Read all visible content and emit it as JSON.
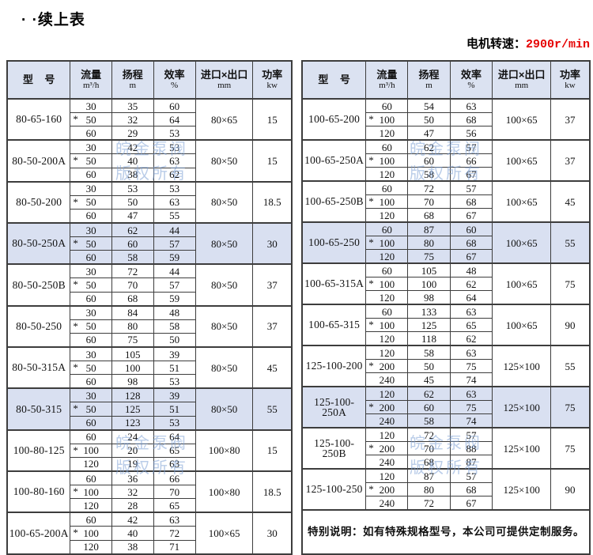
{
  "page": {
    "title": "· ·续上表",
    "motor_speed_label": "电机转速：",
    "motor_speed_value": "2900r/min"
  },
  "colors": {
    "accent_red": "#e60000",
    "header_bg": "#dbe2f1",
    "highlight_bg": "#d9e0f1",
    "watermark_blue": "#80a2d6",
    "border": "#3d3d3d"
  },
  "watermark": {
    "line1": "皖金泵阀",
    "line2": "版权所有"
  },
  "headers": {
    "model": "型    号",
    "flow": "流量",
    "flow_unit": "m³/h",
    "head": "扬程",
    "head_unit": "m",
    "eff": "效率",
    "eff_unit": "%",
    "ports": "进口×出口",
    "ports_unit": "mm",
    "power": "功率",
    "power_unit": "kw"
  },
  "left_table": {
    "rows": [
      {
        "model": "80-65-160",
        "highlight": false,
        "ports": "80×65",
        "power": "15",
        "sub": [
          {
            "flow": "30",
            "head": "35",
            "eff": "60",
            "star": false
          },
          {
            "flow": "50",
            "head": "32",
            "eff": "64",
            "star": true
          },
          {
            "flow": "60",
            "head": "29",
            "eff": "53",
            "star": false
          }
        ]
      },
      {
        "model": "80-50-200A",
        "highlight": false,
        "ports": "80×50",
        "power": "15",
        "sub": [
          {
            "flow": "30",
            "head": "42",
            "eff": "53",
            "star": false
          },
          {
            "flow": "50",
            "head": "40",
            "eff": "63",
            "star": true
          },
          {
            "flow": "60",
            "head": "38",
            "eff": "62",
            "star": false
          }
        ]
      },
      {
        "model": "80-50-200",
        "highlight": false,
        "ports": "80×50",
        "power": "18.5",
        "sub": [
          {
            "flow": "30",
            "head": "53",
            "eff": "53",
            "star": false
          },
          {
            "flow": "50",
            "head": "50",
            "eff": "63",
            "star": true
          },
          {
            "flow": "60",
            "head": "47",
            "eff": "55",
            "star": false
          }
        ]
      },
      {
        "model": "80-50-250A",
        "highlight": true,
        "ports": "80×50",
        "power": "30",
        "sub": [
          {
            "flow": "30",
            "head": "62",
            "eff": "44",
            "star": false
          },
          {
            "flow": "50",
            "head": "60",
            "eff": "57",
            "star": true
          },
          {
            "flow": "60",
            "head": "58",
            "eff": "59",
            "star": false
          }
        ]
      },
      {
        "model": "80-50-250B",
        "highlight": false,
        "ports": "80×50",
        "power": "37",
        "sub": [
          {
            "flow": "30",
            "head": "72",
            "eff": "44",
            "star": false
          },
          {
            "flow": "50",
            "head": "70",
            "eff": "57",
            "star": true
          },
          {
            "flow": "60",
            "head": "68",
            "eff": "59",
            "star": false
          }
        ]
      },
      {
        "model": "80-50-250",
        "highlight": false,
        "ports": "80×50",
        "power": "37",
        "sub": [
          {
            "flow": "30",
            "head": "84",
            "eff": "48",
            "star": false
          },
          {
            "flow": "50",
            "head": "80",
            "eff": "58",
            "star": true
          },
          {
            "flow": "60",
            "head": "75",
            "eff": "50",
            "star": false
          }
        ]
      },
      {
        "model": "80-50-315A",
        "highlight": false,
        "ports": "80×50",
        "power": "45",
        "sub": [
          {
            "flow": "30",
            "head": "105",
            "eff": "39",
            "star": false
          },
          {
            "flow": "50",
            "head": "100",
            "eff": "51",
            "star": true
          },
          {
            "flow": "60",
            "head": "98",
            "eff": "53",
            "star": false
          }
        ]
      },
      {
        "model": "80-50-315",
        "highlight": true,
        "ports": "80×50",
        "power": "55",
        "sub": [
          {
            "flow": "30",
            "head": "128",
            "eff": "39",
            "star": false
          },
          {
            "flow": "50",
            "head": "125",
            "eff": "51",
            "star": true
          },
          {
            "flow": "60",
            "head": "123",
            "eff": "53",
            "star": false
          }
        ]
      },
      {
        "model": "100-80-125",
        "highlight": false,
        "ports": "100×80",
        "power": "15",
        "sub": [
          {
            "flow": "60",
            "head": "24",
            "eff": "64",
            "star": false
          },
          {
            "flow": "100",
            "head": "20",
            "eff": "65",
            "star": true
          },
          {
            "flow": "120",
            "head": "19",
            "eff": "63",
            "star": false
          }
        ]
      },
      {
        "model": "100-80-160",
        "highlight": false,
        "ports": "100×80",
        "power": "18.5",
        "sub": [
          {
            "flow": "60",
            "head": "36",
            "eff": "66",
            "star": false
          },
          {
            "flow": "100",
            "head": "32",
            "eff": "70",
            "star": true
          },
          {
            "flow": "120",
            "head": "28",
            "eff": "65",
            "star": false
          }
        ]
      },
      {
        "model": "100-65-200A",
        "highlight": false,
        "ports": "100×65",
        "power": "30",
        "sub": [
          {
            "flow": "60",
            "head": "42",
            "eff": "63",
            "star": false
          },
          {
            "flow": "100",
            "head": "40",
            "eff": "72",
            "star": true
          },
          {
            "flow": "120",
            "head": "38",
            "eff": "71",
            "star": false
          }
        ]
      }
    ]
  },
  "right_table": {
    "rows": [
      {
        "model": "100-65-200",
        "highlight": false,
        "ports": "100×65",
        "power": "37",
        "sub": [
          {
            "flow": "60",
            "head": "54",
            "eff": "63",
            "star": false
          },
          {
            "flow": "100",
            "head": "50",
            "eff": "68",
            "star": true
          },
          {
            "flow": "120",
            "head": "47",
            "eff": "56",
            "star": false
          }
        ]
      },
      {
        "model": "100-65-250A",
        "highlight": false,
        "ports": "100×65",
        "power": "37",
        "sub": [
          {
            "flow": "60",
            "head": "62",
            "eff": "57",
            "star": false
          },
          {
            "flow": "100",
            "head": "60",
            "eff": "66",
            "star": true
          },
          {
            "flow": "120",
            "head": "58",
            "eff": "67",
            "star": false
          }
        ]
      },
      {
        "model": "100-65-250B",
        "highlight": false,
        "ports": "100×65",
        "power": "45",
        "sub": [
          {
            "flow": "60",
            "head": "72",
            "eff": "57",
            "star": false
          },
          {
            "flow": "100",
            "head": "70",
            "eff": "68",
            "star": true
          },
          {
            "flow": "120",
            "head": "68",
            "eff": "67",
            "star": false
          }
        ]
      },
      {
        "model": "100-65-250",
        "highlight": true,
        "ports": "100×65",
        "power": "55",
        "sub": [
          {
            "flow": "60",
            "head": "87",
            "eff": "60",
            "star": false
          },
          {
            "flow": "100",
            "head": "80",
            "eff": "68",
            "star": true
          },
          {
            "flow": "120",
            "head": "75",
            "eff": "67",
            "star": false
          }
        ]
      },
      {
        "model": "100-65-315A",
        "highlight": false,
        "ports": "100×65",
        "power": "75",
        "sub": [
          {
            "flow": "60",
            "head": "105",
            "eff": "48",
            "star": false
          },
          {
            "flow": "100",
            "head": "100",
            "eff": "62",
            "star": true
          },
          {
            "flow": "120",
            "head": "98",
            "eff": "64",
            "star": false
          }
        ]
      },
      {
        "model": "100-65-315",
        "highlight": false,
        "ports": "100×65",
        "power": "90",
        "sub": [
          {
            "flow": "60",
            "head": "133",
            "eff": "63",
            "star": false
          },
          {
            "flow": "100",
            "head": "125",
            "eff": "65",
            "star": true
          },
          {
            "flow": "120",
            "head": "118",
            "eff": "62",
            "star": false
          }
        ]
      },
      {
        "model": "125-100-200",
        "highlight": false,
        "ports": "125×100",
        "power": "55",
        "sub": [
          {
            "flow": "120",
            "head": "58",
            "eff": "63",
            "star": false
          },
          {
            "flow": "200",
            "head": "50",
            "eff": "75",
            "star": true
          },
          {
            "flow": "240",
            "head": "45",
            "eff": "74",
            "star": false
          }
        ]
      },
      {
        "model": "125-100-250A",
        "highlight": true,
        "ports": "125×100",
        "power": "75",
        "sub": [
          {
            "flow": "120",
            "head": "62",
            "eff": "63",
            "star": false
          },
          {
            "flow": "200",
            "head": "60",
            "eff": "75",
            "star": true
          },
          {
            "flow": "240",
            "head": "58",
            "eff": "74",
            "star": false
          }
        ]
      },
      {
        "model": "125-100-250B",
        "highlight": false,
        "ports": "125×100",
        "power": "75",
        "sub": [
          {
            "flow": "120",
            "head": "72",
            "eff": "57",
            "star": false
          },
          {
            "flow": "200",
            "head": "70",
            "eff": "88",
            "star": true
          },
          {
            "flow": "240",
            "head": "68",
            "eff": "87",
            "star": false
          }
        ]
      },
      {
        "model": "125-100-250",
        "highlight": false,
        "ports": "125×100",
        "power": "90",
        "sub": [
          {
            "flow": "120",
            "head": "87",
            "eff": "57",
            "star": false
          },
          {
            "flow": "200",
            "head": "80",
            "eff": "68",
            "star": true
          },
          {
            "flow": "240",
            "head": "72",
            "eff": "67",
            "star": false
          }
        ]
      }
    ],
    "note": "特别说明：如有特殊规格型号，本公司可提供定制服务。"
  }
}
